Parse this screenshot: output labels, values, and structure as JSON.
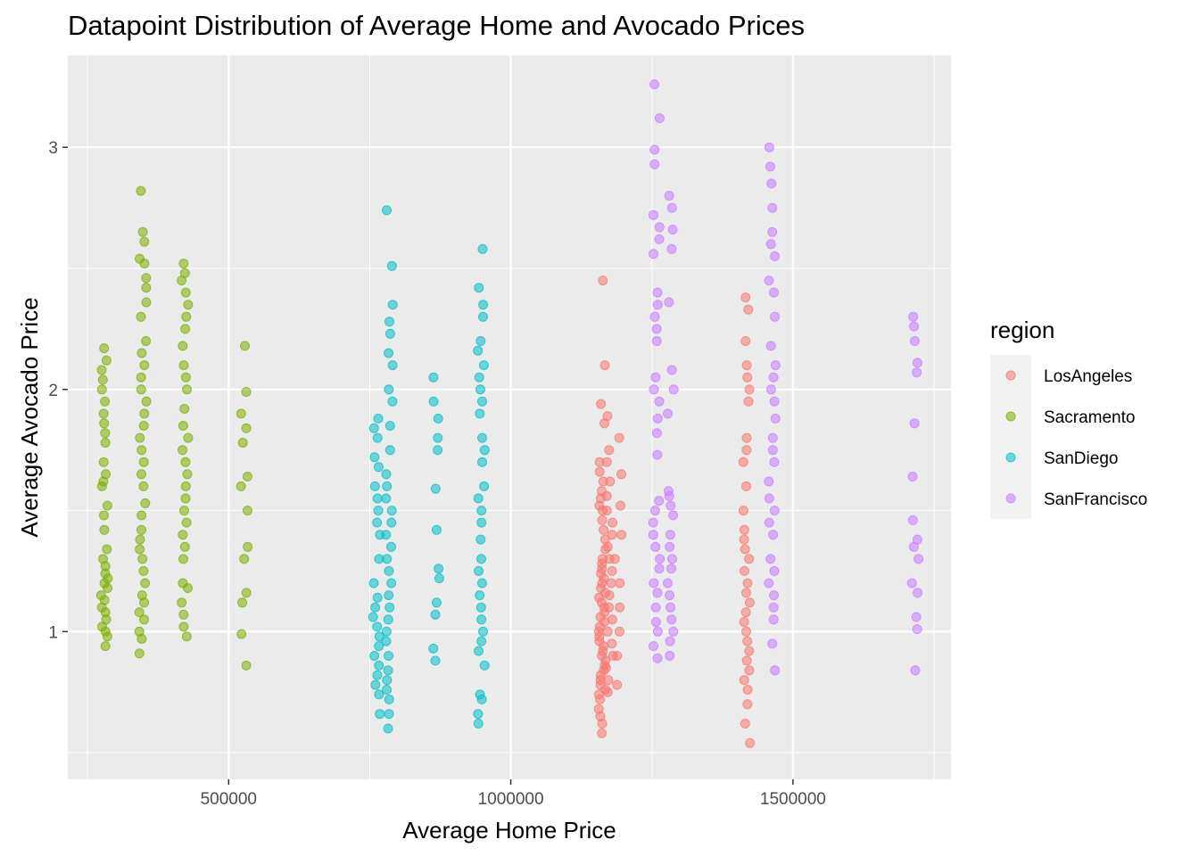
{
  "chart_data": {
    "type": "scatter",
    "title": "Datapoint Distribution of Average Home and Avocado Prices",
    "xlabel": "Average Home Price",
    "ylabel": "Average Avocado Price",
    "xlim": [
      215000,
      1780000
    ],
    "ylim": [
      0.39,
      3.38
    ],
    "x_ticks": [
      500000,
      1000000,
      1500000
    ],
    "x_tick_labels": [
      "500000",
      "1000000",
      "1500000"
    ],
    "y_ticks": [
      1,
      2,
      3
    ],
    "y_tick_labels": [
      "1",
      "2",
      "3"
    ],
    "grid": true,
    "legend": {
      "title": "region",
      "position": "right"
    },
    "series": [
      {
        "name": "LosAngeles",
        "color": "#F8766D",
        "clusters": [
          {
            "x": 1162000,
            "values": [
              0.58,
              0.62,
              0.65,
              0.68,
              0.72,
              0.74,
              0.76,
              0.78,
              0.8,
              0.82,
              0.84,
              0.86,
              0.88,
              0.9,
              0.92,
              0.94,
              0.96,
              0.98,
              1.0,
              1.02,
              1.04,
              1.06,
              1.08,
              1.1,
              1.12,
              1.14,
              1.16,
              1.18,
              1.2,
              1.22,
              1.24,
              1.26,
              1.28,
              1.3,
              1.34,
              1.38,
              1.42,
              1.46,
              1.5,
              1.52,
              1.55,
              1.58,
              1.62,
              1.66,
              1.7,
              1.86,
              1.94,
              2.1,
              2.45
            ]
          },
          {
            "x": 1175000,
            "values": [
              0.75,
              0.8,
              0.85,
              0.9,
              0.95,
              1.0,
              1.05,
              1.1,
              1.15,
              1.2,
              1.25,
              1.3,
              1.35,
              1.4,
              1.45,
              1.5,
              1.56,
              1.62,
              1.7,
              1.75,
              1.89
            ]
          },
          {
            "x": 1190000,
            "values": [
              0.78,
              0.9,
              1.0,
              1.1,
              1.2,
              1.3,
              1.4,
              1.52,
              1.65,
              1.8
            ]
          },
          {
            "x": 1418000,
            "values": [
              0.54,
              0.62,
              0.7,
              0.76,
              0.8,
              0.84,
              0.88,
              0.92,
              0.96,
              1.0,
              1.04,
              1.08,
              1.12,
              1.16,
              1.2,
              1.25,
              1.3,
              1.34,
              1.38,
              1.42,
              1.5,
              1.6,
              1.7,
              1.75,
              1.8,
              1.95,
              2.0,
              2.05,
              2.1,
              2.2,
              2.33,
              2.38
            ]
          }
        ]
      },
      {
        "name": "Sacramento",
        "color": "#7CAE00",
        "clusters": [
          {
            "x": 280000,
            "values": [
              0.94,
              0.98,
              1.0,
              1.02,
              1.05,
              1.08,
              1.1,
              1.13,
              1.15,
              1.18,
              1.2,
              1.22,
              1.24,
              1.27,
              1.3,
              1.34,
              1.42,
              1.48,
              1.52,
              1.6,
              1.62,
              1.65,
              1.7,
              1.78,
              1.82,
              1.86,
              1.9,
              1.95,
              2.0,
              2.04,
              2.08,
              2.12,
              2.17
            ]
          },
          {
            "x": 348000,
            "values": [
              0.91,
              0.97,
              1.0,
              1.05,
              1.08,
              1.12,
              1.15,
              1.2,
              1.25,
              1.3,
              1.34,
              1.38,
              1.42,
              1.48,
              1.53,
              1.6,
              1.65,
              1.7,
              1.75,
              1.8,
              1.85,
              1.9,
              1.95,
              2.0,
              2.05,
              2.1,
              2.15,
              2.2,
              2.3,
              2.36,
              2.42,
              2.46,
              2.52,
              2.54,
              2.61,
              2.65,
              2.82
            ]
          },
          {
            "x": 422000,
            "values": [
              0.98,
              1.02,
              1.07,
              1.12,
              1.18,
              1.2,
              1.3,
              1.35,
              1.4,
              1.45,
              1.5,
              1.55,
              1.6,
              1.65,
              1.7,
              1.75,
              1.8,
              1.85,
              1.92,
              2.0,
              2.05,
              2.1,
              2.18,
              2.25,
              2.3,
              2.35,
              2.4,
              2.45,
              2.48,
              2.52
            ]
          },
          {
            "x": 528000,
            "values": [
              0.86,
              0.99,
              1.12,
              1.16,
              1.3,
              1.35,
              1.5,
              1.6,
              1.64,
              1.78,
              1.84,
              1.9,
              1.99,
              2.18
            ]
          }
        ]
      },
      {
        "name": "SanDiego",
        "color": "#00BFC4",
        "clusters": [
          {
            "x": 762000,
            "values": [
              0.66,
              0.74,
              0.78,
              0.82,
              0.86,
              0.9,
              0.94,
              0.98,
              1.02,
              1.06,
              1.1,
              1.14,
              1.2,
              1.3,
              1.4,
              1.45,
              1.5,
              1.55,
              1.6,
              1.68,
              1.72,
              1.8,
              1.84,
              1.88
            ]
          },
          {
            "x": 785000,
            "values": [
              0.6,
              0.66,
              0.72,
              0.76,
              0.8,
              0.84,
              0.9,
              0.96,
              1.0,
              1.05,
              1.1,
              1.15,
              1.2,
              1.25,
              1.3,
              1.35,
              1.4,
              1.45,
              1.5,
              1.55,
              1.6,
              1.65,
              1.75,
              1.85,
              1.95,
              2.0,
              2.1,
              2.15,
              2.23,
              2.28,
              2.35,
              2.51,
              2.74
            ]
          },
          {
            "x": 868000,
            "values": [
              0.88,
              0.93,
              1.07,
              1.12,
              1.22,
              1.26,
              1.42,
              1.59,
              1.75,
              1.8,
              1.88,
              1.95,
              2.05
            ]
          },
          {
            "x": 948000,
            "values": [
              0.62,
              0.66,
              0.72,
              0.74,
              0.86,
              0.92,
              0.96,
              1.0,
              1.05,
              1.1,
              1.15,
              1.2,
              1.25,
              1.3,
              1.38,
              1.45,
              1.5,
              1.55,
              1.6,
              1.7,
              1.75,
              1.8,
              1.9,
              1.95,
              2.0,
              2.05,
              2.1,
              2.16,
              2.2,
              2.3,
              2.35,
              2.42,
              2.58
            ]
          }
        ]
      },
      {
        "name": "SanFrancisco",
        "color": "#C77CFF",
        "clusters": [
          {
            "x": 1258000,
            "values": [
              0.89,
              0.94,
              1.0,
              1.04,
              1.1,
              1.16,
              1.2,
              1.26,
              1.3,
              1.35,
              1.4,
              1.45,
              1.5,
              1.54,
              1.73,
              1.82,
              1.88,
              1.95,
              2.0,
              2.05,
              2.2,
              2.25,
              2.3,
              2.35,
              2.4,
              2.56,
              2.62,
              2.67,
              2.72,
              2.93,
              2.99,
              3.12,
              3.26
            ]
          },
          {
            "x": 1283000,
            "values": [
              0.9,
              0.96,
              1.0,
              1.05,
              1.1,
              1.15,
              1.2,
              1.26,
              1.3,
              1.35,
              1.4,
              1.48,
              1.52,
              1.56,
              1.58,
              1.9,
              2.0,
              2.08,
              2.36,
              2.58,
              2.66,
              2.75,
              2.8
            ]
          },
          {
            "x": 1463000,
            "values": [
              0.84,
              0.95,
              1.05,
              1.1,
              1.15,
              1.2,
              1.25,
              1.3,
              1.4,
              1.45,
              1.5,
              1.55,
              1.62,
              1.7,
              1.75,
              1.8,
              1.88,
              1.95,
              2.0,
              2.05,
              2.1,
              2.18,
              2.3,
              2.4,
              2.45,
              2.55,
              2.6,
              2.65,
              2.75,
              2.85,
              2.92,
              3.0
            ]
          },
          {
            "x": 1717000,
            "values": [
              0.84,
              1.01,
              1.06,
              1.16,
              1.2,
              1.3,
              1.35,
              1.38,
              1.46,
              1.64,
              1.86,
              2.07,
              2.11,
              2.2,
              2.26,
              2.3
            ]
          }
        ]
      }
    ]
  }
}
